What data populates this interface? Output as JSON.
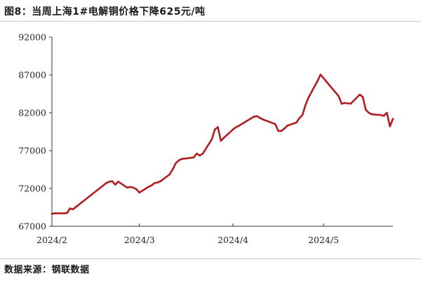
{
  "title": "图8：当周上海1#电解铜价格下降625元/吨",
  "source": "数据来源：钢联数据",
  "colors": {
    "line": "#b11c22",
    "axis": "#333333",
    "text": "#222222"
  },
  "chart_data": {
    "type": "line",
    "title": "图8：当周上海1#电解铜价格下降625元/吨",
    "xlabel": "",
    "ylabel": "",
    "ylim": [
      67000,
      92000
    ],
    "yticks": [
      67000,
      72000,
      77000,
      82000,
      87000,
      92000
    ],
    "ytick_labels": [
      "67000",
      "72000",
      "77000",
      "82000",
      "87000",
      "92000"
    ],
    "xlim": [
      "2024-02-01",
      "2024-05-24"
    ],
    "xticks": [
      "2024-02-01",
      "2024-03-01",
      "2024-04-01",
      "2024-05-01"
    ],
    "xtick_labels": [
      "2024/2",
      "2024/3",
      "2024/4",
      "2024/5"
    ],
    "grid": false,
    "legend": "none",
    "series": [
      {
        "x": [
          "2024-02-01",
          "2024-02-02",
          "2024-02-05",
          "2024-02-06",
          "2024-02-07",
          "2024-02-08",
          "2024-02-19",
          "2024-02-20",
          "2024-02-21",
          "2024-02-22",
          "2024-02-23",
          "2024-02-26",
          "2024-02-27",
          "2024-02-28",
          "2024-02-29",
          "2024-03-01",
          "2024-03-04",
          "2024-03-05",
          "2024-03-06",
          "2024-03-07",
          "2024-03-08",
          "2024-03-11",
          "2024-03-12",
          "2024-03-13",
          "2024-03-14",
          "2024-03-15",
          "2024-03-18",
          "2024-03-19",
          "2024-03-20",
          "2024-03-21",
          "2024-03-22",
          "2024-03-25",
          "2024-03-26",
          "2024-03-27",
          "2024-03-28",
          "2024-03-29",
          "2024-04-01",
          "2024-04-02",
          "2024-04-03",
          "2024-04-08",
          "2024-04-09",
          "2024-04-10",
          "2024-04-11",
          "2024-04-12",
          "2024-04-15",
          "2024-04-16",
          "2024-04-17",
          "2024-04-18",
          "2024-04-19",
          "2024-04-22",
          "2024-04-23",
          "2024-04-24",
          "2024-04-25",
          "2024-04-26",
          "2024-04-29",
          "2024-04-30",
          "2024-05-06",
          "2024-05-07",
          "2024-05-08",
          "2024-05-09",
          "2024-05-10",
          "2024-05-13",
          "2024-05-14",
          "2024-05-15",
          "2024-05-16",
          "2024-05-17",
          "2024-05-20",
          "2024-05-21",
          "2024-05-22",
          "2024-05-23",
          "2024-05-24"
        ],
        "values": [
          68650,
          68700,
          68700,
          68750,
          69350,
          69250,
          72700,
          72900,
          72950,
          72500,
          72900,
          72100,
          72200,
          72100,
          71900,
          71450,
          72200,
          72400,
          72700,
          72800,
          72950,
          73850,
          74500,
          75300,
          75700,
          75900,
          76050,
          76100,
          76600,
          76350,
          76600,
          78500,
          79800,
          80100,
          78300,
          78700,
          79800,
          80100,
          80300,
          81500,
          81550,
          81300,
          81100,
          80950,
          80500,
          79600,
          79600,
          79900,
          80300,
          80700,
          81300,
          81700,
          83000,
          84000,
          86200,
          87050,
          84200,
          83200,
          83300,
          83250,
          83200,
          84400,
          84100,
          82400,
          82000,
          81800,
          81700,
          81600,
          82000,
          80200,
          81200
        ]
      }
    ]
  }
}
